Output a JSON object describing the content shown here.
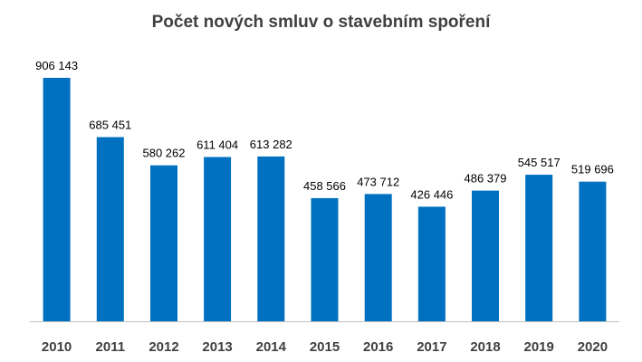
{
  "chart_data": {
    "type": "bar",
    "title": "Počet nových smluv o stavebním spoření",
    "categories": [
      "2010",
      "2011",
      "2012",
      "2013",
      "2014",
      "2015",
      "2016",
      "2017",
      "2018",
      "2019",
      "2020"
    ],
    "values": [
      906143,
      685451,
      580262,
      611404,
      613282,
      458566,
      473712,
      426446,
      486379,
      545517,
      519696
    ],
    "value_labels": [
      "906 143",
      "685 451",
      "580 262",
      "611 404",
      "613 282",
      "458 566",
      "473 712",
      "426 446",
      "486 379",
      "545 517",
      "519 696"
    ],
    "xlabel": "",
    "ylabel": "",
    "ylim": [
      0,
      906143
    ],
    "grid": false,
    "legend": "none",
    "bar_color": "#0070C0",
    "axis_color": "#BFBFBF",
    "title_color": "#404040",
    "tick_color": "#404040",
    "label_color": "#000000"
  }
}
